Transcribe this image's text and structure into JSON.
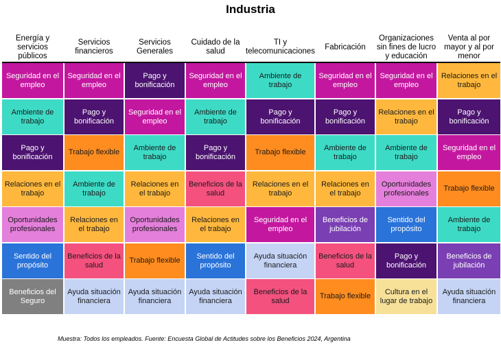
{
  "chart_data": {
    "type": "table",
    "title": "Industria",
    "columns": [
      "Energía y servicios públicos",
      "Servicios financieros",
      "Servicios Generales",
      "Cuidado de la salud",
      "TI y telecomunicaciones",
      "Fabricación",
      "Organizaciones sin fines de lucro y educación",
      "Venta al por mayor y al por menor"
    ],
    "rows": [
      [
        "Seguridad en el empleo",
        "Seguridad en el empleo",
        "Pago y bonificación",
        "Seguridad en el empleo",
        "Ambiente de trabajo",
        "Seguridad en el empleo",
        "Seguridad en el empleo",
        "Relaciones en el trabajo"
      ],
      [
        "Ambiente de trabajo",
        "Pago y bonificación",
        "Seguridad en el empleo",
        "Ambiente de trabajo",
        "Pago y bonificación",
        "Pago y bonificación",
        "Relaciones en el trabajo",
        "Pago y bonificación"
      ],
      [
        "Pago y bonificación",
        "Trabajo flexible",
        "Ambiente de trabajo",
        "Pago y bonificación",
        "Trabajo flexible",
        "Ambiente de trabajo",
        "Ambiente de trabajo",
        "Seguridad en el empleo"
      ],
      [
        "Relaciones en el trabajo",
        "Ambiente de trabajo",
        "Relaciones en el trabajo",
        "Beneficios de la salud",
        "Relaciones en el trabajo",
        "Relaciones en el trabajo",
        "Oportunidades profesionales",
        "Trabajo flexible"
      ],
      [
        "Oportunidades profesionales",
        "Relaciones en el trabajo",
        "Oportunidades profesionales",
        "Relaciones en el trabajo",
        "Seguridad en el empleo",
        "Beneficios de jubilación",
        "Sentido del propósito",
        "Ambiente de trabajo"
      ],
      [
        "Sentido del propósito",
        "Beneficios de la salud",
        "Trabajo flexible",
        "Sentido del propósito",
        "Ayuda situación financiera",
        "Beneficios de la salud",
        "Pago y bonificación",
        "Beneficios de jubilación"
      ],
      [
        "Beneficios del Seguro",
        "Ayuda situación financiera",
        "Ayuda situación financiera",
        "Ayuda situación financiera",
        "Beneficios de la salud",
        "Trabajo flexible",
        "Cultura en el lugar de trabajo",
        "Ayuda situación financiera"
      ]
    ],
    "category_colors": {
      "Seguridad en el empleo": {
        "bg": "#c4179f",
        "fg": "#ffffff"
      },
      "Pago y bonificación": {
        "bg": "#4c1370",
        "fg": "#ffffff"
      },
      "Ambiente de trabajo": {
        "bg": "#3ddbc6",
        "fg": "#1a1a1a"
      },
      "Relaciones en el trabajo": {
        "bg": "#ffb83d",
        "fg": "#1a1a1a"
      },
      "Trabajo flexible": {
        "bg": "#ff8c1f",
        "fg": "#1a1a1a"
      },
      "Beneficios de la salud": {
        "bg": "#f4517f",
        "fg": "#1a1a1a"
      },
      "Oportunidades profesionales": {
        "bg": "#e57fdc",
        "fg": "#1a1a1a"
      },
      "Sentido del propósito": {
        "bg": "#2a73d9",
        "fg": "#ffffff"
      },
      "Beneficios de jubilación": {
        "bg": "#7a3fb3",
        "fg": "#ffffff"
      },
      "Ayuda situación financiera": {
        "bg": "#c5d4f5",
        "fg": "#1a1a1a"
      },
      "Beneficios del Seguro": {
        "bg": "#808080",
        "fg": "#ffffff"
      },
      "Cultura en el lugar de trabajo": {
        "bg": "#f7e199",
        "fg": "#1a1a1a"
      }
    }
  },
  "footnote": "Muestra: Todos los empleados. Fuente: Encuesta Global de Actitudes sobre los Beneficios 2024, Argentina"
}
